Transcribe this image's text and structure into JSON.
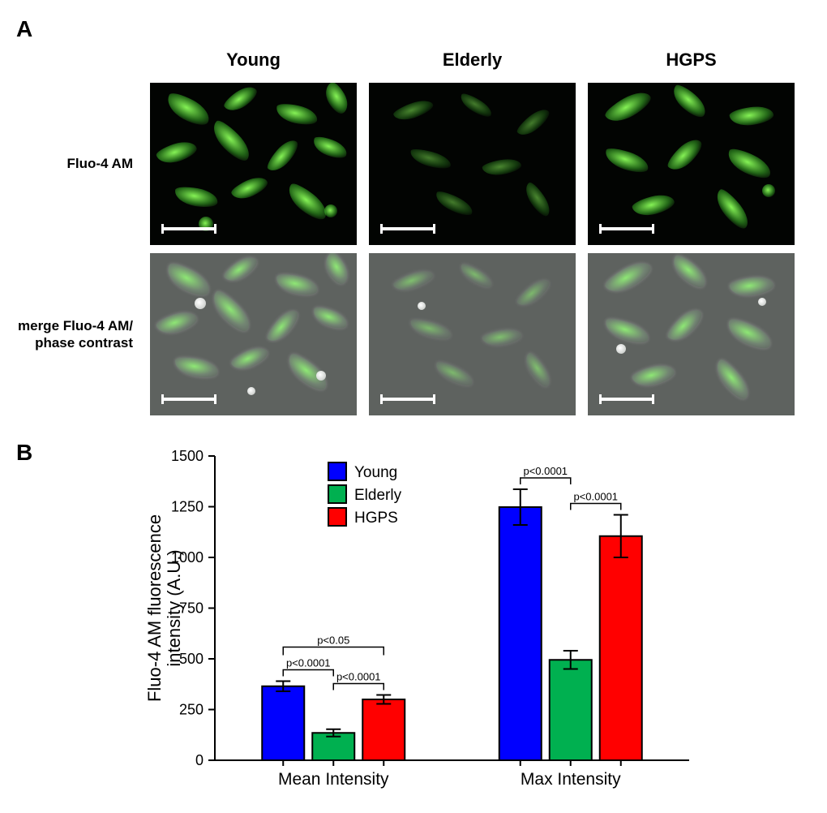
{
  "panelA": {
    "label": "A",
    "columns": [
      "Young",
      "Elderly",
      "HGPS"
    ],
    "rows": [
      "Fluo-4 AM",
      "merge Fluo-4 AM/\nphase contrast"
    ],
    "image_styles": {
      "fluo_bg": "#020402",
      "merge_bg": "#5e625f",
      "cell_green_bright": "#8cff5a",
      "cell_green_dim": "#3cb428",
      "scalebar_color": "#ffffff"
    },
    "cell_density": {
      "young": "high",
      "elderly": "low",
      "hgps": "medium"
    }
  },
  "panelB": {
    "label": "B",
    "chart": {
      "type": "bar",
      "ylabel_line1": "Fluo-4 AM fluorescence",
      "ylabel_line2": "intensity (A.U.)",
      "ylim": [
        0,
        1500
      ],
      "ytick_step": 250,
      "x_groups": [
        "Mean Intensity",
        "Max Intensity"
      ],
      "series": [
        "Young",
        "Elderly",
        "HGPS"
      ],
      "series_colors": {
        "Young": "#0000ff",
        "Elderly": "#00b050",
        "HGPS": "#ff0000"
      },
      "values": {
        "Mean Intensity": {
          "Young": 365,
          "Elderly": 135,
          "HGPS": 300
        },
        "Max Intensity": {
          "Young": 1248,
          "Elderly": 495,
          "HGPS": 1105
        }
      },
      "errors": {
        "Mean Intensity": {
          "Young": 25,
          "Elderly": 18,
          "HGPS": 22
        },
        "Max Intensity": {
          "Young": 88,
          "Elderly": 45,
          "HGPS": 105
        }
      },
      "significance": {
        "Mean Intensity": {
          "Young-Elderly": "p<0.0001",
          "Young-HGPS": "p<0.05",
          "Elderly-HGPS": "p<0.0001"
        },
        "Max Intensity": {
          "Young-Elderly": "p<0.0001",
          "Young-HGPS": null,
          "Elderly-HGPS": "p<0.0001"
        }
      },
      "legend_position": "upper-left-inside",
      "background_color": "#ffffff",
      "axis_color": "#000000",
      "bar_width": 0.75,
      "label_fontsize": 22,
      "tick_fontsize": 18
    }
  }
}
